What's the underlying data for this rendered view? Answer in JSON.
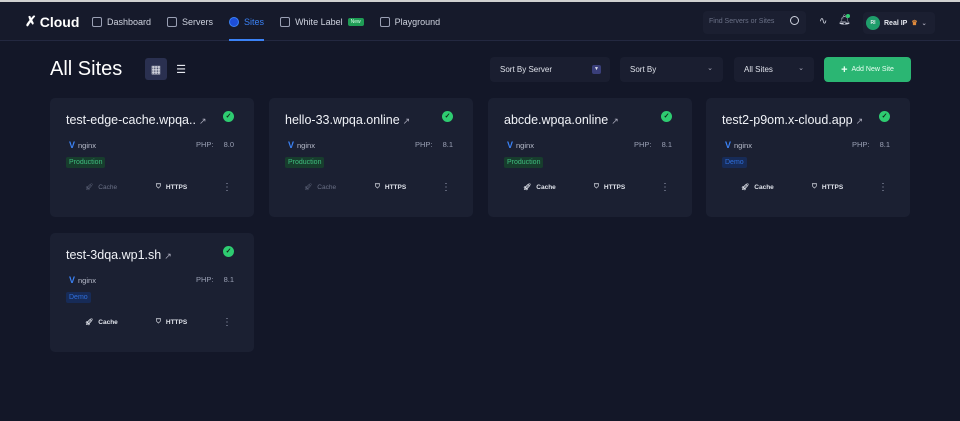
{
  "header": {
    "logo": "Cloud",
    "nav": [
      {
        "label": "Dashboard"
      },
      {
        "label": "Servers"
      },
      {
        "label": "Sites",
        "active": true
      },
      {
        "label": "White Label",
        "badge": "New"
      },
      {
        "label": "Playground"
      }
    ],
    "search_placeholder": "Find Servers or Sites",
    "user": {
      "initials": "RI",
      "name": "Real IP"
    }
  },
  "page": {
    "title": "All Sites",
    "sort_server": "Sort By Server",
    "sort_by": "Sort By",
    "filter": "All Sites",
    "add_button": "Add New Site"
  },
  "colors": {
    "accent": "#3b82f6",
    "success": "#2bb673",
    "background": "#131728",
    "card": "#1b2032"
  },
  "sites": [
    {
      "name": "test-edge-cache.wpqa..",
      "server": "nginx",
      "php_label": "PHP:",
      "php": "8.0",
      "tag": "Production",
      "cache": "Cache",
      "https": "HTTPS",
      "cache_enabled": false
    },
    {
      "name": "hello-33.wpqa.online",
      "server": "nginx",
      "php_label": "PHP:",
      "php": "8.1",
      "tag": "Production",
      "cache": "Cache",
      "https": "HTTPS",
      "cache_enabled": false
    },
    {
      "name": "abcde.wpqa.online",
      "server": "nginx",
      "php_label": "PHP:",
      "php": "8.1",
      "tag": "Production",
      "cache": "Cache",
      "https": "HTTPS",
      "cache_enabled": true
    },
    {
      "name": "test2-p9om.x-cloud.app",
      "server": "nginx",
      "php_label": "PHP:",
      "php": "8.1",
      "tag": "Demo",
      "cache": "Cache",
      "https": "HTTPS",
      "cache_enabled": true
    },
    {
      "name": "test-3dqa.wp1.sh",
      "server": "nginx",
      "php_label": "PHP:",
      "php": "8.1",
      "tag": "Demo",
      "cache": "Cache",
      "https": "HTTPS",
      "cache_enabled": true
    }
  ]
}
